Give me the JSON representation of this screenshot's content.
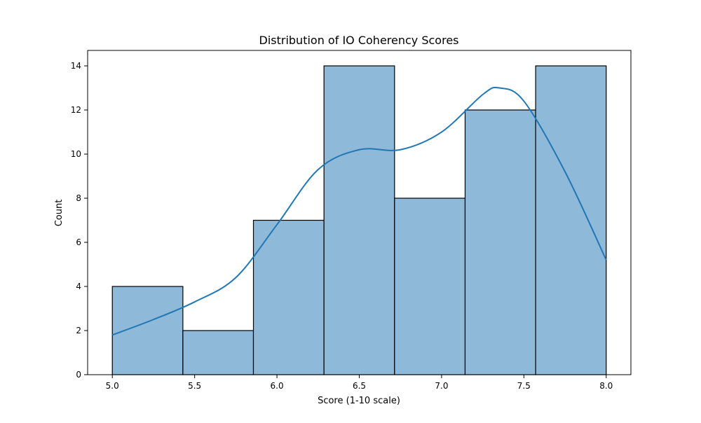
{
  "chart_data": {
    "type": "bar",
    "title": "Distribution of IO Coherency Scores",
    "xlabel": "Score (1-10 scale)",
    "ylabel": "Count",
    "xlim": [
      4.85,
      8.15
    ],
    "ylim": [
      0,
      14.7
    ],
    "x_ticks": [
      5.0,
      5.5,
      6.0,
      6.5,
      7.0,
      7.5,
      8.0
    ],
    "y_ticks": [
      0,
      2,
      4,
      6,
      8,
      10,
      12,
      14
    ],
    "bins": [
      {
        "start": 5.0,
        "end": 5.4286,
        "count": 4
      },
      {
        "start": 5.4286,
        "end": 5.8571,
        "count": 2
      },
      {
        "start": 5.8571,
        "end": 6.2857,
        "count": 7
      },
      {
        "start": 6.2857,
        "end": 6.7143,
        "count": 14
      },
      {
        "start": 6.7143,
        "end": 7.1429,
        "count": 8
      },
      {
        "start": 7.1429,
        "end": 7.5714,
        "count": 12
      },
      {
        "start": 7.5714,
        "end": 8.0,
        "count": 14
      }
    ],
    "kde": {
      "x": [
        5.0,
        5.25,
        5.5,
        5.75,
        6.0,
        6.25,
        6.5,
        6.75,
        7.0,
        7.25,
        7.35,
        7.5,
        7.75,
        8.0
      ],
      "y": [
        1.8,
        2.5,
        3.3,
        4.4,
        6.8,
        9.3,
        10.2,
        10.2,
        11.0,
        12.7,
        13.0,
        12.4,
        9.2,
        5.2
      ]
    },
    "grid": false,
    "colors": {
      "bar_fill": "#8fb9d9",
      "bar_edge": "#000000",
      "kde_line": "#1f77b4",
      "axis": "#000000",
      "text": "#000000"
    }
  }
}
